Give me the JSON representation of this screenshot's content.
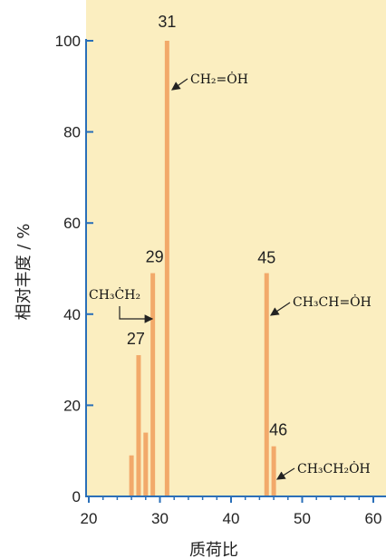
{
  "chart_data": {
    "type": "bar",
    "xlabel": "质荷比",
    "ylabel": "相对丰度 / %",
    "xlim": [
      18,
      62
    ],
    "ylim": [
      0,
      100
    ],
    "xticks": [
      20,
      30,
      40,
      50,
      60
    ],
    "yticks": [
      0,
      20,
      40,
      60,
      80,
      100
    ],
    "peaks": [
      {
        "x": 26,
        "y": 9
      },
      {
        "x": 27,
        "y": 31
      },
      {
        "x": 28,
        "y": 14
      },
      {
        "x": 29,
        "y": 49
      },
      {
        "x": 31,
        "y": 100
      },
      {
        "x": 45,
        "y": 49
      },
      {
        "x": 46,
        "y": 11
      }
    ],
    "peak_labels": [
      {
        "x": 27,
        "text": "27"
      },
      {
        "x": 29,
        "text": "29"
      },
      {
        "x": 31,
        "text": "31"
      },
      {
        "x": 45,
        "text": "45"
      },
      {
        "x": 46,
        "text": "46"
      }
    ],
    "annotations": [
      {
        "text": "CH₂=ȮH",
        "for_peak": 31
      },
      {
        "text": "CH₃ĊH₂",
        "for_peak": 29
      },
      {
        "text": "CH₃CH=ȮH",
        "for_peak": 45
      },
      {
        "text": "CH₃CH₂ȮH",
        "for_peak": 46
      }
    ],
    "colors": {
      "background": "#fbeec0",
      "bar": "#f2a96a",
      "axis": "#2a6fb8"
    }
  }
}
